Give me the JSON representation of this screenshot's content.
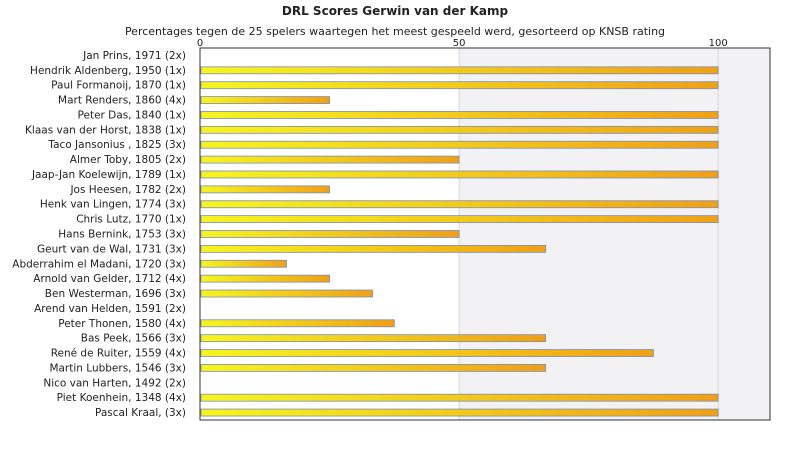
{
  "chart_data": {
    "type": "bar",
    "orientation": "horizontal",
    "title": "DRL Scores Gerwin van der Kamp",
    "subtitle": "Percentages tegen de 25 spelers waartegen het meest gespeeld werd, gesorteerd op KNSB rating",
    "xlim": [
      0,
      110
    ],
    "xticks": [
      0,
      50,
      100
    ],
    "grid": true,
    "categories": [
      "Jan Prins, 1971 (2x)",
      "Hendrik Aldenberg, 1950 (1x)",
      "Paul Formanoij, 1870 (1x)",
      "Mart Renders, 1860 (4x)",
      "Peter Das, 1840 (1x)",
      "Klaas van der Horst, 1838 (1x)",
      "Taco Jansonius , 1825 (3x)",
      "Almer Toby, 1805 (2x)",
      "Jaap-Jan Koelewijn, 1789 (1x)",
      "Jos Heesen, 1782 (2x)",
      "Henk van Lingen, 1774 (3x)",
      "Chris Lutz, 1770 (1x)",
      "Hans Bernink, 1753 (3x)",
      "Geurt van de Wal, 1731 (3x)",
      "Abderrahim el Madani, 1720 (3x)",
      "Arnold van Gelder, 1712 (4x)",
      "Ben Westerman, 1696 (3x)",
      "Arend van Helden, 1591 (2x)",
      "Peter Thonen, 1580 (4x)",
      "Bas Peek, 1566 (3x)",
      "René de Ruiter, 1559 (4x)",
      "Martin Lubbers, 1546 (3x)",
      "Nico van Harten, 1492 (2x)",
      "Piet Koenhein, 1348 (4x)",
      "Pascal Kraal,  (3x)"
    ],
    "values": [
      0,
      100,
      100,
      25,
      100,
      100,
      100,
      50,
      100,
      25,
      100,
      100,
      50,
      66.7,
      16.7,
      25,
      33.3,
      0,
      37.5,
      66.7,
      87.5,
      66.7,
      0,
      100,
      100
    ],
    "colors": {
      "bar_start": "#f5f51f",
      "bar_end": "#f0a015",
      "bar_border": "#7b8fb8",
      "plot_bg_left": "#ffffff",
      "plot_bg_right": "#f2f2f4",
      "axis": "#333333",
      "grid": "#d8d8d8"
    }
  }
}
